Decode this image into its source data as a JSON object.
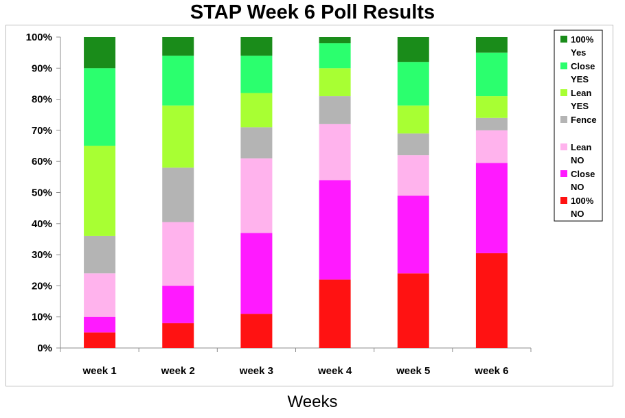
{
  "chart_data": {
    "type": "bar",
    "stacked": true,
    "percent_stacked": true,
    "title": "STAP Week 6 Poll Results",
    "xlabel": "Weeks",
    "ylabel": "",
    "ylim": [
      0,
      100
    ],
    "yticks": [
      "0%",
      "10%",
      "20%",
      "30%",
      "40%",
      "50%",
      "60%",
      "70%",
      "80%",
      "90%",
      "100%"
    ],
    "categories": [
      "week 1",
      "week 2",
      "week 3",
      "week 4",
      "week 5",
      "week 6"
    ],
    "grid": false,
    "legend_position": "right",
    "series": [
      {
        "name": "100% NO",
        "legend_lines": [
          "100%",
          "NO"
        ],
        "color": "#ff1212",
        "values": [
          5,
          8,
          11,
          22,
          24,
          30.5
        ]
      },
      {
        "name": "Close NO",
        "legend_lines": [
          "Close",
          "NO"
        ],
        "color": "#ff1aff",
        "values": [
          5,
          12,
          26,
          32,
          25,
          29
        ]
      },
      {
        "name": "Lean NO",
        "legend_lines": [
          "Lean",
          "NO"
        ],
        "color": "#ffb3ed",
        "values": [
          14,
          20.5,
          24,
          18,
          13,
          10.5
        ]
      },
      {
        "name": "Fence",
        "legend_lines": [
          "Fence"
        ],
        "color": "#b4b4b4",
        "values": [
          12,
          17.5,
          10,
          9,
          7,
          4
        ]
      },
      {
        "name": "Lean YES",
        "legend_lines": [
          "Lean",
          "YES"
        ],
        "color": "#a8ff33",
        "values": [
          29,
          20,
          11,
          9,
          9,
          7
        ]
      },
      {
        "name": "Close YES",
        "legend_lines": [
          "Close",
          "YES"
        ],
        "color": "#2bff6e",
        "values": [
          25,
          16,
          12,
          8,
          14,
          14
        ]
      },
      {
        "name": "100% Yes",
        "legend_lines": [
          "100%",
          "Yes"
        ],
        "color": "#1a8c1a",
        "values": [
          10,
          6,
          6,
          2,
          8,
          5
        ]
      }
    ]
  }
}
